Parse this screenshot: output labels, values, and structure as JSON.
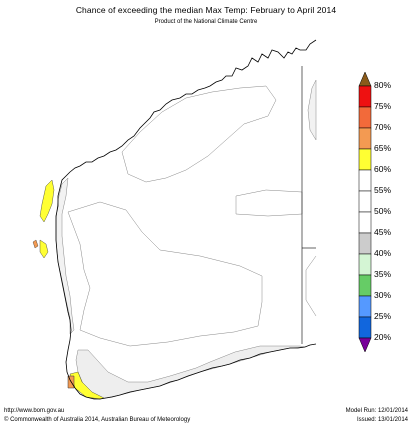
{
  "title": "Chance of exceeding the median Max Temp: February to April 2014",
  "subtitle": "Product of the National Climate Centre",
  "legend": {
    "labels": [
      "80%",
      "75%",
      "70%",
      "65%",
      "60%",
      "55%",
      "50%",
      "45%",
      "40%",
      "35%",
      "30%",
      "25%",
      "20%"
    ],
    "colors": {
      "gt80": "#8a5a1a",
      "75_80": "#ee1111",
      "70_75": "#f26a3a",
      "65_70": "#f39a52",
      "60_65": "#ffff33",
      "55_60": "#ffffff",
      "50_55": "#ffffff",
      "45_50": "#ffffff",
      "40_45": "#cccccc",
      "35_40": "#d4f5d4",
      "30_35": "#66cc66",
      "25_30": "#5599ff",
      "20_25": "#1166dd",
      "lt20": "#770099"
    }
  },
  "footer": {
    "url": "http://www.bom.gov.au",
    "copyright": "©   Commonwealth of Australia 2014, Australian Bureau of Meteorology",
    "model_run": "Model Run: 12/01/2014",
    "issued": "Issued: 13/01/2014"
  }
}
